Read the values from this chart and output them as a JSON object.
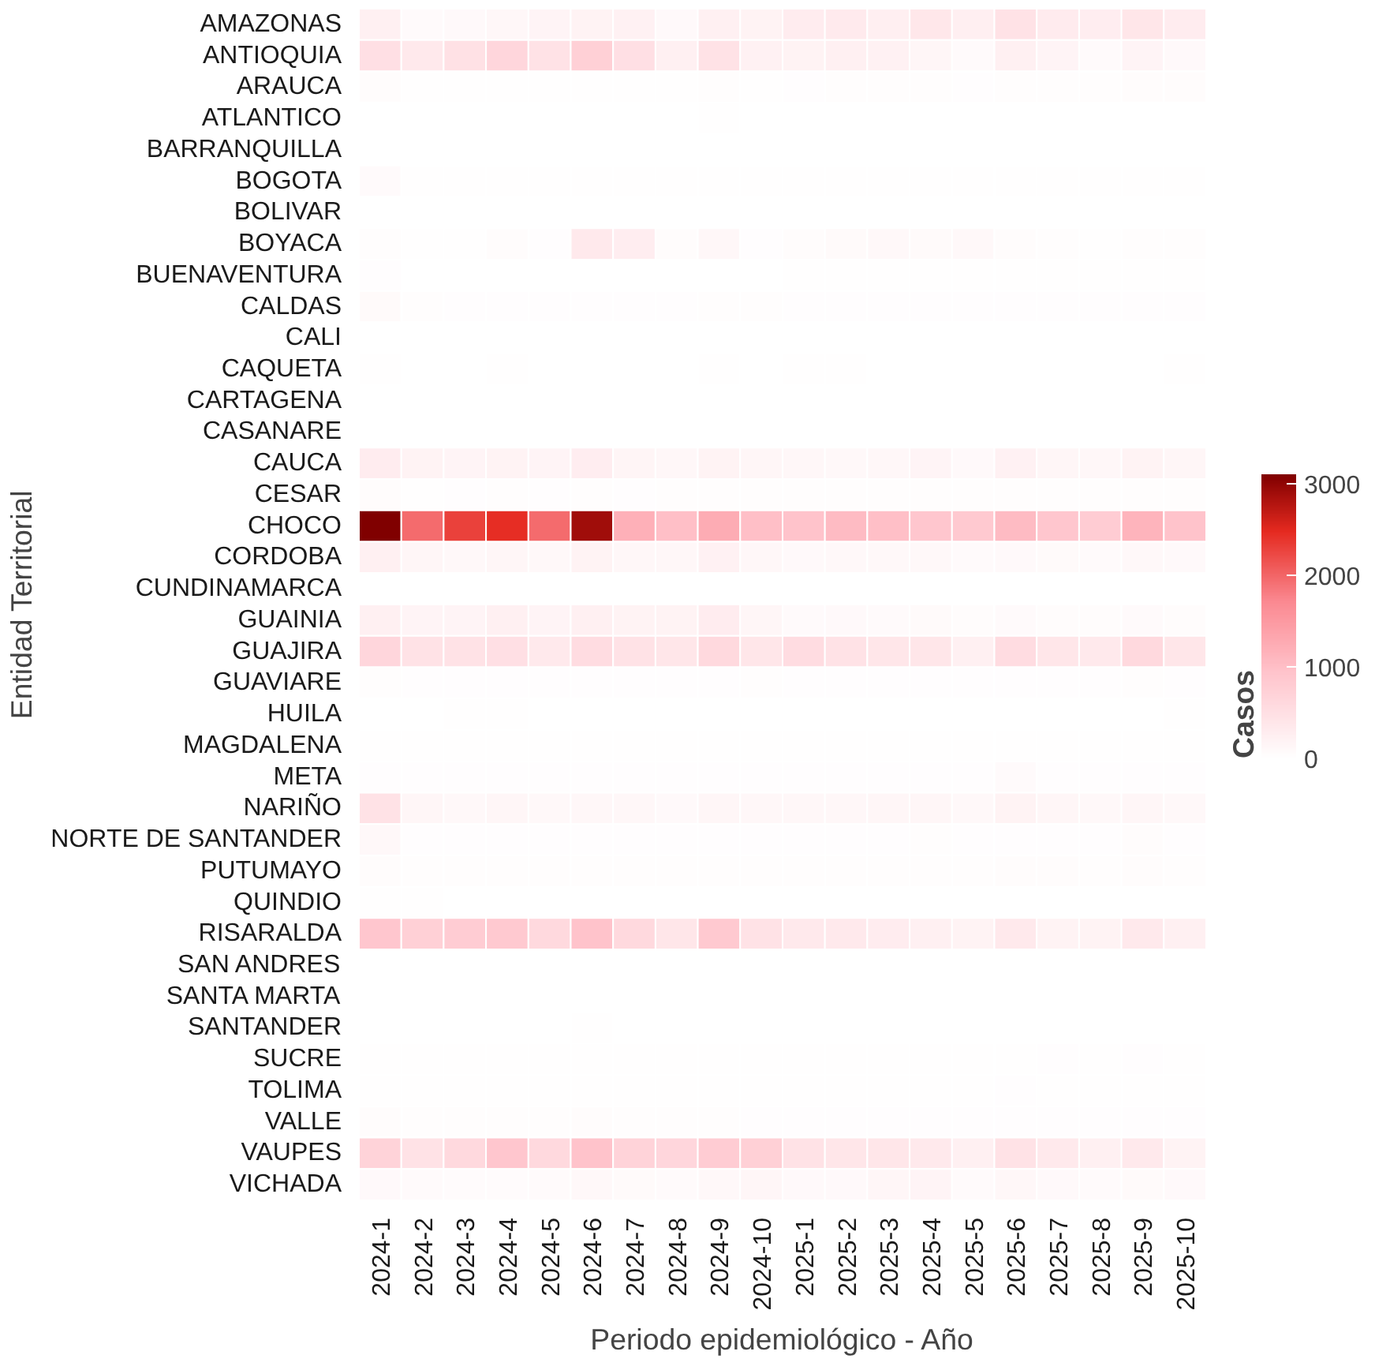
{
  "chart_data": {
    "type": "heatmap",
    "xlabel": "Periodo epidemiológico - Año",
    "ylabel": "Entidad Territorial",
    "clabel": "Casos",
    "categories": [
      "2024-1",
      "2024-2",
      "2024-3",
      "2024-4",
      "2024-5",
      "2024-6",
      "2024-7",
      "2024-8",
      "2024-9",
      "2024-10",
      "2025-1",
      "2025-2",
      "2025-3",
      "2025-4",
      "2025-5",
      "2025-6",
      "2025-7",
      "2025-8",
      "2025-9",
      "2025-10"
    ],
    "y_categories": [
      "AMAZONAS",
      "ANTIOQUIA",
      "ARAUCA",
      "ATLANTICO",
      "BARRANQUILLA",
      "BOGOTA",
      "BOLIVAR",
      "BOYACA",
      "BUENAVENTURA",
      "CALDAS",
      "CALI",
      "CAQUETA",
      "CARTAGENA",
      "CASANARE",
      "CAUCA",
      "CESAR",
      "CHOCO",
      "CORDOBA",
      "CUNDINAMARCA",
      "GUAINIA",
      "GUAJIRA",
      "GUAVIARE",
      "HUILA",
      "MAGDALENA",
      "META",
      "NARIÑO",
      "NORTE DE SANTANDER",
      "PUTUMAYO",
      "QUINDIO",
      "RISARALDA",
      "SAN ANDRES",
      "SANTA MARTA",
      "SANTANDER",
      "SUCRE",
      "TOLIMA",
      "VALLE",
      "VAUPES",
      "VICHADA"
    ],
    "cells": [
      [
        250,
        80,
        100,
        130,
        170,
        200,
        220,
        100,
        250,
        200,
        300,
        330,
        260,
        380,
        260,
        450,
        320,
        280,
        400,
        300
      ],
      [
        500,
        350,
        480,
        650,
        450,
        750,
        500,
        250,
        450,
        220,
        200,
        240,
        220,
        150,
        80,
        250,
        180,
        80,
        180,
        100
      ],
      [
        60,
        20,
        20,
        20,
        20,
        20,
        20,
        20,
        40,
        20,
        30,
        40,
        40,
        40,
        30,
        40,
        40,
        40,
        50,
        60
      ],
      [
        0,
        0,
        0,
        0,
        0,
        0,
        0,
        0,
        20,
        0,
        0,
        0,
        0,
        0,
        0,
        0,
        0,
        0,
        0,
        0
      ],
      [
        0,
        0,
        0,
        0,
        0,
        0,
        0,
        0,
        0,
        0,
        0,
        0,
        0,
        0,
        0,
        0,
        0,
        0,
        0,
        0
      ],
      [
        80,
        20,
        20,
        20,
        20,
        20,
        20,
        20,
        20,
        20,
        20,
        20,
        20,
        20,
        20,
        20,
        20,
        20,
        20,
        20
      ],
      [
        0,
        0,
        0,
        0,
        0,
        10,
        0,
        0,
        0,
        10,
        0,
        0,
        0,
        0,
        0,
        0,
        0,
        0,
        0,
        0
      ],
      [
        40,
        20,
        20,
        60,
        30,
        350,
        280,
        60,
        130,
        30,
        60,
        90,
        120,
        90,
        120,
        50,
        40,
        20,
        40,
        40
      ],
      [
        30,
        10,
        10,
        10,
        10,
        10,
        10,
        10,
        10,
        10,
        20,
        20,
        20,
        20,
        20,
        20,
        20,
        20,
        20,
        20
      ],
      [
        90,
        40,
        30,
        30,
        30,
        30,
        30,
        30,
        40,
        40,
        30,
        30,
        30,
        30,
        30,
        30,
        30,
        30,
        30,
        30
      ],
      [
        0,
        0,
        0,
        0,
        0,
        0,
        0,
        0,
        0,
        0,
        0,
        10,
        10,
        0,
        0,
        0,
        0,
        0,
        0,
        0
      ],
      [
        20,
        10,
        10,
        20,
        10,
        10,
        10,
        10,
        20,
        10,
        20,
        20,
        10,
        10,
        10,
        10,
        10,
        10,
        10,
        20
      ],
      [
        0,
        0,
        0,
        0,
        0,
        0,
        0,
        0,
        0,
        0,
        0,
        0,
        0,
        0,
        0,
        0,
        0,
        0,
        0,
        0
      ],
      [
        10,
        10,
        10,
        10,
        10,
        10,
        10,
        10,
        10,
        10,
        10,
        10,
        10,
        10,
        10,
        10,
        10,
        10,
        10,
        10
      ],
      [
        300,
        200,
        170,
        200,
        170,
        280,
        160,
        130,
        200,
        150,
        140,
        120,
        140,
        170,
        100,
        230,
        150,
        130,
        200,
        150
      ],
      [
        50,
        20,
        30,
        40,
        30,
        40,
        30,
        40,
        40,
        40,
        40,
        40,
        40,
        40,
        40,
        40,
        40,
        40,
        40,
        40
      ],
      [
        3100,
        1950,
        2300,
        2450,
        1950,
        2900,
        1200,
        1000,
        1250,
        1000,
        950,
        1050,
        1000,
        900,
        850,
        1050,
        900,
        800,
        1150,
        950
      ],
      [
        250,
        150,
        120,
        150,
        120,
        200,
        140,
        130,
        220,
        130,
        100,
        120,
        110,
        110,
        80,
        100,
        90,
        80,
        110,
        100
      ],
      [
        10,
        10,
        10,
        10,
        10,
        10,
        10,
        10,
        10,
        10,
        10,
        10,
        10,
        10,
        10,
        10,
        10,
        10,
        10,
        10
      ],
      [
        250,
        180,
        170,
        250,
        170,
        250,
        200,
        200,
        300,
        150,
        80,
        100,
        80,
        90,
        60,
        80,
        60,
        50,
        80,
        60
      ],
      [
        650,
        450,
        450,
        500,
        350,
        550,
        450,
        400,
        600,
        400,
        550,
        450,
        400,
        400,
        250,
        550,
        400,
        350,
        600,
        400
      ],
      [
        40,
        30,
        30,
        30,
        30,
        30,
        30,
        30,
        30,
        40,
        30,
        30,
        30,
        30,
        30,
        30,
        30,
        30,
        40,
        30
      ],
      [
        10,
        10,
        20,
        20,
        10,
        10,
        10,
        10,
        10,
        10,
        10,
        10,
        10,
        10,
        10,
        10,
        10,
        10,
        10,
        20
      ],
      [
        20,
        20,
        20,
        20,
        20,
        20,
        20,
        20,
        20,
        20,
        20,
        20,
        20,
        20,
        20,
        20,
        20,
        20,
        20,
        20
      ],
      [
        30,
        30,
        30,
        30,
        30,
        30,
        30,
        30,
        30,
        30,
        30,
        30,
        30,
        30,
        30,
        80,
        30,
        30,
        30,
        30
      ],
      [
        450,
        150,
        120,
        150,
        120,
        130,
        130,
        100,
        150,
        130,
        130,
        130,
        150,
        150,
        120,
        200,
        150,
        120,
        150,
        120
      ],
      [
        120,
        30,
        30,
        30,
        30,
        30,
        30,
        30,
        30,
        30,
        30,
        30,
        30,
        40,
        30,
        30,
        30,
        30,
        50,
        30
      ],
      [
        60,
        40,
        40,
        40,
        40,
        40,
        40,
        40,
        40,
        40,
        40,
        40,
        40,
        40,
        40,
        50,
        50,
        40,
        50,
        40
      ],
      [
        20,
        20,
        0,
        0,
        0,
        0,
        0,
        0,
        0,
        0,
        0,
        0,
        0,
        0,
        0,
        0,
        0,
        0,
        0,
        0
      ],
      [
        900,
        750,
        800,
        850,
        600,
        950,
        600,
        400,
        850,
        450,
        350,
        350,
        300,
        250,
        200,
        350,
        200,
        200,
        350,
        250
      ],
      [
        0,
        0,
        0,
        0,
        0,
        0,
        0,
        0,
        0,
        0,
        0,
        0,
        0,
        0,
        0,
        0,
        0,
        0,
        0,
        0
      ],
      [
        0,
        0,
        0,
        0,
        0,
        0,
        0,
        0,
        0,
        0,
        0,
        0,
        0,
        0,
        0,
        0,
        0,
        0,
        0,
        0
      ],
      [
        10,
        10,
        10,
        10,
        10,
        20,
        10,
        10,
        10,
        10,
        10,
        10,
        10,
        10,
        10,
        10,
        10,
        10,
        10,
        10
      ],
      [
        20,
        20,
        20,
        20,
        20,
        20,
        20,
        20,
        20,
        20,
        20,
        20,
        20,
        20,
        20,
        20,
        30,
        20,
        30,
        20
      ],
      [
        20,
        20,
        20,
        20,
        20,
        20,
        20,
        20,
        20,
        20,
        20,
        20,
        20,
        20,
        20,
        30,
        20,
        20,
        20,
        20
      ],
      [
        60,
        40,
        40,
        40,
        40,
        50,
        40,
        40,
        40,
        30,
        30,
        30,
        30,
        30,
        30,
        30,
        30,
        30,
        30,
        30
      ],
      [
        700,
        450,
        600,
        900,
        600,
        950,
        700,
        650,
        800,
        750,
        450,
        400,
        400,
        350,
        250,
        450,
        350,
        250,
        350,
        200
      ],
      [
        100,
        80,
        70,
        70,
        80,
        120,
        90,
        80,
        110,
        150,
        100,
        100,
        150,
        180,
        80,
        130,
        100,
        80,
        90,
        100
      ]
    ],
    "clim": [
      0,
      3100
    ],
    "cticks": [
      0,
      1000,
      2000,
      3000
    ]
  }
}
